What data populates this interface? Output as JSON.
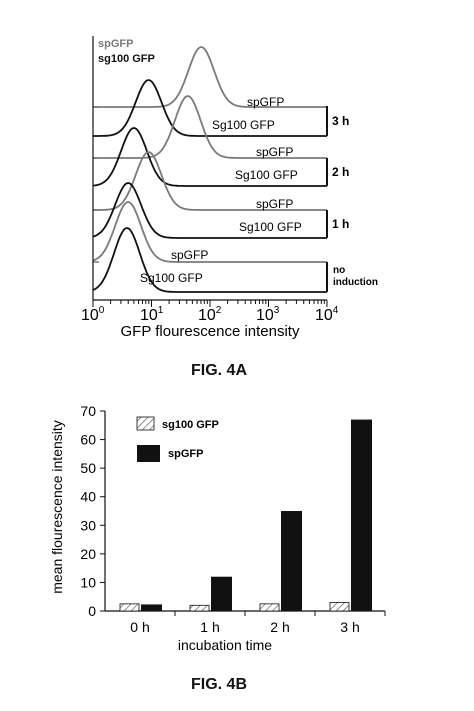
{
  "figure_a": {
    "caption": "FIG. 4A",
    "xlabel": "GFP flourescence intensity",
    "x_ticks": [
      {
        "base": "10",
        "exp": "0"
      },
      {
        "base": "10",
        "exp": "1"
      },
      {
        "base": "10",
        "exp": "2"
      },
      {
        "base": "10",
        "exp": "3"
      },
      {
        "base": "10",
        "exp": "4"
      }
    ],
    "legend": {
      "sp": "spGFP",
      "sg": "sg100 GFP"
    },
    "groups": [
      {
        "time_label": "3 h",
        "sp_label": "spGFP",
        "sg_label": "Sg100 GFP"
      },
      {
        "time_label": "2 h",
        "sp_label": "spGFP",
        "sg_label": "Sg100 GFP"
      },
      {
        "time_label": "1 h",
        "sp_label": "spGFP",
        "sg_label": "Sg100 GFP"
      },
      {
        "time_label": "no induction",
        "time_label_1": "no",
        "time_label_2": "induction",
        "sp_label": "spGFP",
        "sg_label": "Sg100 GFP"
      }
    ],
    "colors": {
      "sp": "#7a7a7a",
      "sg": "#111111"
    }
  },
  "chart_data": {
    "type": "bar",
    "caption": "FIG. 4B",
    "categories": [
      "0 h",
      "1 h",
      "2 h",
      "3 h"
    ],
    "series": [
      {
        "name": "sg100 GFP",
        "pattern": "hatched",
        "values": [
          2.5,
          2,
          2.5,
          3
        ]
      },
      {
        "name": "spGFP",
        "pattern": "solid",
        "values": [
          2.3,
          12,
          35,
          67
        ]
      }
    ],
    "xlabel": "incubation time",
    "ylabel": "mean flourescence intensity",
    "ylim": [
      0,
      70
    ],
    "y_ticks": [
      0,
      10,
      20,
      30,
      40,
      50,
      60,
      70
    ],
    "legend_position": "top-left",
    "colors": {
      "solid": "#111111",
      "hatch": "#555555"
    }
  }
}
